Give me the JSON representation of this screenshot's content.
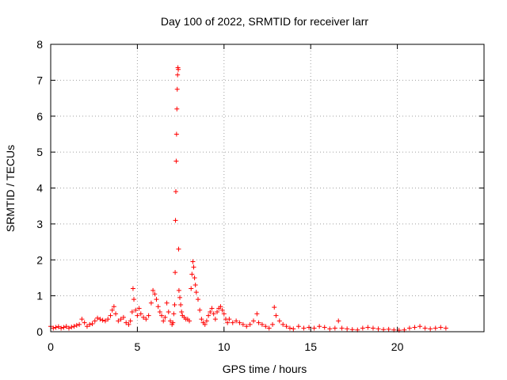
{
  "chart_data": {
    "type": "scatter",
    "title": "Day 100 of 2022, SRMTID for receiver larr",
    "xlabel": "GPS time / hours",
    "ylabel": "SRMTID / TECUs",
    "xlim": [
      0,
      25
    ],
    "ylim": [
      0,
      8
    ],
    "xticks": [
      0,
      5,
      10,
      15,
      20
    ],
    "yticks": [
      0,
      1,
      2,
      3,
      4,
      5,
      6,
      7,
      8
    ],
    "grid": true,
    "marker": "plus",
    "color": "#ff0000",
    "series": [
      {
        "x": [
          0.0,
          0.15,
          0.3,
          0.45,
          0.6,
          0.75,
          0.9,
          1.05,
          1.2,
          1.35,
          1.5,
          1.65,
          1.8,
          1.95,
          2.1,
          2.25,
          2.4,
          2.55,
          2.7,
          2.85,
          3.0,
          3.15,
          3.3,
          3.45,
          3.55,
          3.65,
          3.75,
          3.9,
          4.05,
          4.2,
          4.35,
          4.5,
          4.6,
          4.7,
          4.75,
          4.8,
          4.9,
          5.0,
          5.1,
          5.2,
          5.35,
          5.5,
          5.65,
          5.8,
          5.9,
          6.0,
          6.1,
          6.2,
          6.3,
          6.4,
          6.5,
          6.6,
          6.7,
          6.8,
          6.9,
          7.0,
          7.05,
          7.1,
          7.15,
          7.18,
          7.2,
          7.22,
          7.24,
          7.26,
          7.28,
          7.3,
          7.32,
          7.34,
          7.36,
          7.38,
          7.4,
          7.45,
          7.5,
          7.55,
          7.6,
          7.7,
          7.8,
          7.9,
          8.0,
          8.1,
          8.15,
          8.2,
          8.25,
          8.3,
          8.35,
          8.4,
          8.5,
          8.6,
          8.7,
          8.8,
          8.9,
          9.0,
          9.1,
          9.2,
          9.3,
          9.4,
          9.5,
          9.6,
          9.7,
          9.8,
          9.9,
          10.0,
          10.1,
          10.2,
          10.3,
          10.5,
          10.7,
          10.9,
          11.1,
          11.3,
          11.5,
          11.7,
          11.9,
          12.0,
          12.2,
          12.4,
          12.6,
          12.8,
          12.9,
          13.0,
          13.2,
          13.4,
          13.6,
          13.8,
          14.0,
          14.3,
          14.6,
          14.9,
          15.2,
          15.5,
          15.8,
          16.1,
          16.4,
          16.6,
          16.8,
          17.1,
          17.4,
          17.7,
          18.0,
          18.3,
          18.6,
          18.9,
          19.2,
          19.5,
          19.8,
          20.1,
          20.4,
          20.7,
          21.0,
          21.3,
          21.6,
          21.9,
          22.2,
          22.5,
          22.8
        ],
        "y": [
          0.15,
          0.1,
          0.12,
          0.14,
          0.1,
          0.12,
          0.15,
          0.1,
          0.13,
          0.15,
          0.18,
          0.2,
          0.35,
          0.25,
          0.15,
          0.2,
          0.22,
          0.3,
          0.38,
          0.35,
          0.32,
          0.3,
          0.35,
          0.45,
          0.6,
          0.7,
          0.5,
          0.3,
          0.35,
          0.4,
          0.25,
          0.2,
          0.3,
          0.55,
          1.2,
          0.9,
          0.6,
          0.45,
          0.65,
          0.5,
          0.4,
          0.35,
          0.45,
          0.8,
          1.15,
          1.05,
          0.9,
          0.7,
          0.55,
          0.45,
          0.3,
          0.4,
          0.8,
          0.55,
          0.3,
          0.2,
          0.25,
          0.5,
          0.75,
          1.65,
          3.1,
          3.9,
          4.75,
          5.5,
          6.2,
          6.75,
          7.15,
          7.35,
          7.3,
          2.3,
          1.15,
          0.95,
          0.75,
          0.55,
          0.45,
          0.4,
          0.35,
          0.35,
          0.3,
          1.2,
          1.6,
          1.95,
          1.8,
          1.5,
          1.3,
          1.1,
          0.9,
          0.6,
          0.35,
          0.25,
          0.2,
          0.3,
          0.45,
          0.55,
          0.65,
          0.5,
          0.35,
          0.55,
          0.65,
          0.7,
          0.6,
          0.5,
          0.35,
          0.25,
          0.35,
          0.25,
          0.3,
          0.25,
          0.2,
          0.15,
          0.2,
          0.3,
          0.5,
          0.25,
          0.2,
          0.15,
          0.1,
          0.2,
          0.68,
          0.45,
          0.3,
          0.2,
          0.15,
          0.1,
          0.08,
          0.15,
          0.1,
          0.12,
          0.1,
          0.15,
          0.12,
          0.08,
          0.1,
          0.3,
          0.1,
          0.08,
          0.06,
          0.05,
          0.1,
          0.12,
          0.1,
          0.08,
          0.06,
          0.07,
          0.05,
          0.04,
          0.05,
          0.1,
          0.12,
          0.15,
          0.1,
          0.08,
          0.1,
          0.12,
          0.1
        ]
      }
    ]
  }
}
